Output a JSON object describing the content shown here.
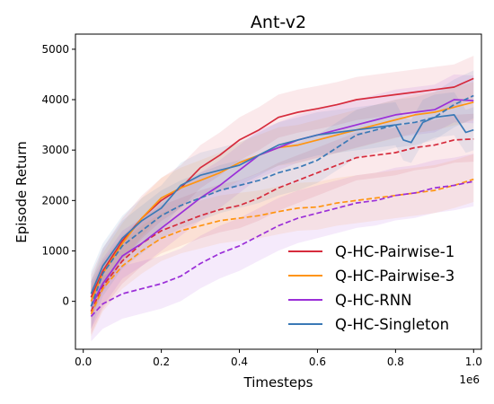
{
  "chart_data": {
    "type": "line",
    "title": "Ant-v2",
    "xlabel": "Timesteps",
    "ylabel": "Episode Return",
    "x_offset_label": "1e6",
    "xlim": [
      -0.02,
      1.02
    ],
    "ylim": [
      -950,
      5300
    ],
    "xticks": [
      0.0,
      0.2,
      0.4,
      0.6,
      0.8,
      1.0
    ],
    "xtick_labels": [
      "0.0",
      "0.2",
      "0.4",
      "0.6",
      "0.8",
      "1.0"
    ],
    "yticks": [
      0,
      1000,
      2000,
      3000,
      4000,
      5000
    ],
    "ytick_labels": [
      "0",
      "1000",
      "2000",
      "3000",
      "4000",
      "5000"
    ],
    "grid": false,
    "legend_position": "lower-right",
    "legend": [
      {
        "label": "Q-HC-Pairwise-1",
        "color": "#d62b3c"
      },
      {
        "label": "Q-HC-Pairwise-3",
        "color": "#ff9410"
      },
      {
        "label": "Q-HC-RNN",
        "color": "#9b2fd8"
      },
      {
        "label": "Q-HC-Singleton",
        "color": "#3a79b6"
      }
    ],
    "series": [
      {
        "color": "#d62b3c",
        "style": "solid",
        "x": [
          0.02,
          0.05,
          0.1,
          0.15,
          0.2,
          0.25,
          0.3,
          0.35,
          0.4,
          0.45,
          0.5,
          0.55,
          0.6,
          0.65,
          0.7,
          0.75,
          0.8,
          0.85,
          0.9,
          0.95,
          1.0
        ],
        "y": [
          80,
          600,
          1200,
          1650,
          2000,
          2250,
          2650,
          2900,
          3200,
          3400,
          3650,
          3750,
          3820,
          3900,
          4000,
          4050,
          4100,
          4150,
          4200,
          4250,
          4420
        ],
        "band": 450
      },
      {
        "color": "#d62b3c",
        "style": "dashed",
        "x": [
          0.02,
          0.05,
          0.1,
          0.15,
          0.2,
          0.25,
          0.3,
          0.35,
          0.4,
          0.45,
          0.5,
          0.55,
          0.6,
          0.65,
          0.7,
          0.75,
          0.8,
          0.85,
          0.9,
          0.95,
          1.0
        ],
        "y": [
          -200,
          300,
          800,
          1150,
          1400,
          1550,
          1700,
          1820,
          1900,
          2050,
          2250,
          2400,
          2550,
          2700,
          2850,
          2900,
          2950,
          3050,
          3100,
          3200,
          3220
        ],
        "band": 500
      },
      {
        "color": "#ff9410",
        "style": "solid",
        "x": [
          0.02,
          0.05,
          0.1,
          0.15,
          0.2,
          0.25,
          0.3,
          0.35,
          0.4,
          0.45,
          0.5,
          0.55,
          0.6,
          0.65,
          0.7,
          0.75,
          0.8,
          0.85,
          0.9,
          0.95,
          1.0
        ],
        "y": [
          0,
          550,
          1150,
          1650,
          2050,
          2250,
          2400,
          2550,
          2750,
          2900,
          3050,
          3100,
          3200,
          3300,
          3400,
          3500,
          3600,
          3700,
          3750,
          3850,
          3950
        ],
        "band": 400
      },
      {
        "color": "#ff9410",
        "style": "dashed",
        "x": [
          0.02,
          0.05,
          0.1,
          0.15,
          0.2,
          0.25,
          0.3,
          0.35,
          0.4,
          0.45,
          0.5,
          0.55,
          0.6,
          0.65,
          0.7,
          0.75,
          0.8,
          0.85,
          0.9,
          0.95,
          1.0
        ],
        "y": [
          -250,
          250,
          700,
          1000,
          1250,
          1400,
          1500,
          1600,
          1650,
          1700,
          1780,
          1850,
          1870,
          1950,
          2000,
          2050,
          2100,
          2150,
          2200,
          2300,
          2420
        ],
        "band": 500
      },
      {
        "color": "#9b2fd8",
        "style": "solid",
        "x": [
          0.02,
          0.05,
          0.1,
          0.15,
          0.2,
          0.25,
          0.3,
          0.35,
          0.4,
          0.45,
          0.5,
          0.55,
          0.6,
          0.65,
          0.7,
          0.75,
          0.8,
          0.85,
          0.9,
          0.95,
          1.0
        ],
        "y": [
          -100,
          350,
          900,
          1150,
          1450,
          1750,
          2050,
          2300,
          2600,
          2900,
          3050,
          3200,
          3300,
          3400,
          3500,
          3600,
          3700,
          3750,
          3800,
          4000,
          3980
        ],
        "band": 500
      },
      {
        "color": "#9b2fd8",
        "style": "dashed",
        "x": [
          0.02,
          0.05,
          0.1,
          0.15,
          0.2,
          0.25,
          0.3,
          0.35,
          0.4,
          0.45,
          0.5,
          0.55,
          0.6,
          0.65,
          0.7,
          0.75,
          0.8,
          0.85,
          0.9,
          0.95,
          1.0
        ],
        "y": [
          -300,
          -50,
          150,
          250,
          350,
          500,
          750,
          950,
          1100,
          1300,
          1500,
          1650,
          1750,
          1850,
          1950,
          2000,
          2100,
          2150,
          2250,
          2300,
          2380
        ],
        "band": 550
      },
      {
        "color": "#3a79b6",
        "style": "solid",
        "x": [
          0.02,
          0.05,
          0.1,
          0.15,
          0.2,
          0.25,
          0.3,
          0.35,
          0.4,
          0.45,
          0.5,
          0.55,
          0.6,
          0.65,
          0.7,
          0.75,
          0.8,
          0.82,
          0.84,
          0.87,
          0.9,
          0.95,
          0.98,
          1.0
        ],
        "y": [
          150,
          700,
          1250,
          1600,
          1850,
          2300,
          2500,
          2600,
          2700,
          2900,
          3100,
          3200,
          3300,
          3350,
          3400,
          3450,
          3500,
          3200,
          3150,
          3550,
          3650,
          3700,
          3350,
          3400
        ],
        "band": 450
      },
      {
        "color": "#3a79b6",
        "style": "dashed",
        "x": [
          0.02,
          0.05,
          0.1,
          0.15,
          0.2,
          0.25,
          0.3,
          0.35,
          0.4,
          0.45,
          0.5,
          0.55,
          0.6,
          0.65,
          0.7,
          0.75,
          0.8,
          0.85,
          0.9,
          0.95,
          1.0
        ],
        "y": [
          -100,
          550,
          1100,
          1400,
          1700,
          1900,
          2050,
          2200,
          2300,
          2400,
          2550,
          2650,
          2800,
          3050,
          3300,
          3400,
          3500,
          3550,
          3650,
          3900,
          4080
        ],
        "band": 500
      }
    ]
  }
}
